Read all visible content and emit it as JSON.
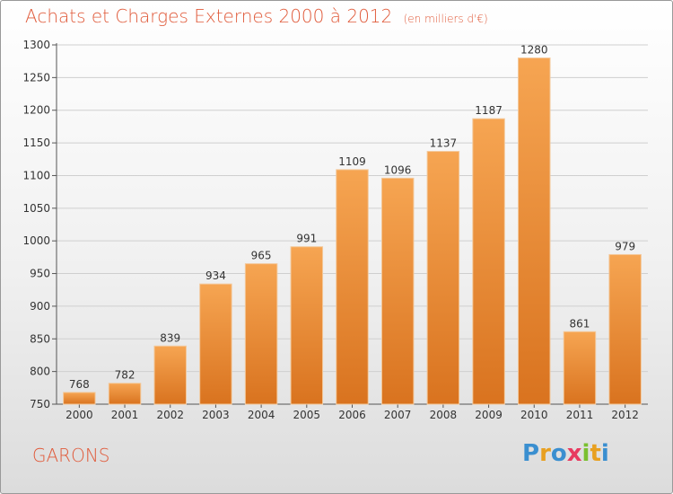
{
  "header": {
    "title": "Achats et Charges Externes 2000 à 2012",
    "subtitle": "(en milliers d'€)"
  },
  "footer": {
    "commune": "GARONS",
    "logo": "Proxiti",
    "logo_colors": [
      "#3a8fd0",
      "#e8a020",
      "#3a8fd0",
      "#e83a60",
      "#7ac030",
      "#e8a020",
      "#3a8fd0"
    ]
  },
  "colors": {
    "bar_top": "#f6a552",
    "bar_bottom": "#d9731f",
    "title": "#e05a3a"
  },
  "chart_data": {
    "type": "bar",
    "title": "Achats et Charges Externes 2000 à 2012",
    "subtitle": "(en milliers d'€)",
    "categories": [
      "2000",
      "2001",
      "2002",
      "2003",
      "2004",
      "2005",
      "2006",
      "2007",
      "2008",
      "2009",
      "2010",
      "2011",
      "2012"
    ],
    "values": [
      768,
      782,
      839,
      934,
      965,
      991,
      1109,
      1096,
      1137,
      1187,
      1280,
      861,
      979
    ],
    "ylim": [
      750,
      1300
    ],
    "yticks": [
      750,
      800,
      850,
      900,
      950,
      1000,
      1050,
      1100,
      1150,
      1200,
      1250,
      1300
    ],
    "grid": true,
    "xlabel": "",
    "ylabel": ""
  }
}
